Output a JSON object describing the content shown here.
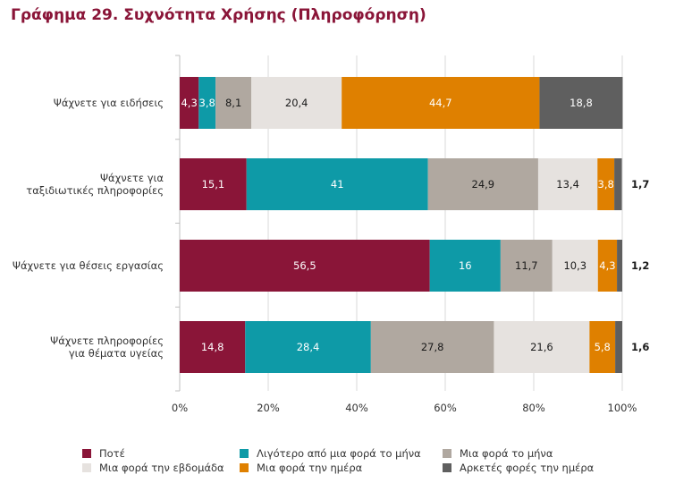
{
  "title": {
    "prefix": "Γράφημα 29.",
    "text": "Συχνότητα Χρήσης (Πληροφόρηση)"
  },
  "chart_data": {
    "type": "bar",
    "orientation": "horizontal",
    "stacked": true,
    "percent_stacked": true,
    "categories": [
      [
        "Ψάχνετε για ειδήσεις"
      ],
      [
        "Ψάχνετε για",
        "ταξιδιωτικές πληροφορίες"
      ],
      [
        "Ψάχνετε για θέσεις εργασίας"
      ],
      [
        "Ψάχνετε πληροφορίες",
        "για θέματα υγείας"
      ]
    ],
    "series": [
      {
        "name": "Ποτέ",
        "color": "#8a1538",
        "label_color": "#ffffff",
        "values": [
          4.3,
          15.1,
          56.5,
          14.8
        ]
      },
      {
        "name": "Λιγότερο από μια φορά το μήνα",
        "color": "#0e9aa7",
        "label_color": "#ffffff",
        "values": [
          3.8,
          41,
          16,
          28.4
        ]
      },
      {
        "name": "Μια φορά το μήνα",
        "color": "#b0a8a0",
        "label_color": "#1a1a1a",
        "values": [
          8.1,
          24.9,
          11.7,
          27.8
        ]
      },
      {
        "name": "Μια φορά την εβδομάδα",
        "color": "#e6e2df",
        "label_color": "#1a1a1a",
        "values": [
          20.4,
          13.4,
          10.3,
          21.6
        ]
      },
      {
        "name": "Μια φορά την ημέρα",
        "color": "#df8000",
        "label_color": "#ffffff",
        "values": [
          44.7,
          3.8,
          4.3,
          5.8
        ]
      },
      {
        "name": "Αρκετές φορές την ημέρα",
        "color": "#5f5f5f",
        "label_color": "#ffffff",
        "values": [
          18.8,
          1.7,
          1.2,
          1.6
        ]
      }
    ],
    "value_labels": [
      [
        "4,3",
        "3,8",
        "8,1",
        "20,4",
        "44,7",
        "18,8"
      ],
      [
        "15,1",
        "41",
        "24,9",
        "13,4",
        "3,8",
        "1,7"
      ],
      [
        "56,5",
        "16",
        "11,7",
        "10,3",
        "4,3",
        "1,2"
      ],
      [
        "14,8",
        "28,4",
        "27,8",
        "21,6",
        "5,8",
        "1,6"
      ]
    ],
    "outside_label_series_index": 5,
    "outside_label_rows": [
      1,
      2,
      3
    ],
    "xlim": [
      0,
      100
    ],
    "x_ticks": [
      0,
      20,
      40,
      60,
      80,
      100
    ],
    "x_tick_labels": [
      "0%",
      "20%",
      "40%",
      "60%",
      "80%",
      "100%"
    ],
    "grid": true,
    "legend_position": "bottom"
  }
}
